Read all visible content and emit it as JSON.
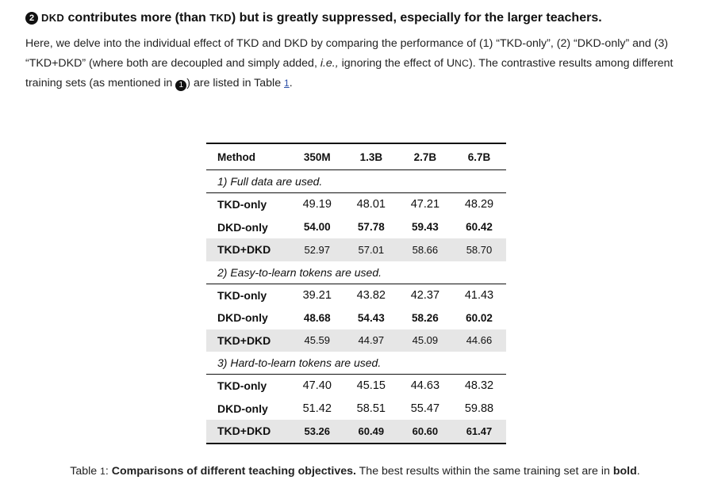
{
  "heading": {
    "badge": "2",
    "text_a": "DKD",
    "text_b": " contributes more (than ",
    "text_c": "TKD",
    "text_d": ") but is greatly suppressed, especially for the larger teachers."
  },
  "paragraph": {
    "p1": "Here, we delve into the individual effect of TKD and DKD by comparing the performance of (1) “TKD-only”, (2) “DKD-only” and (3) “TKD+DKD” (where both are decoupled and simply added, ",
    "ie": "i.e.,",
    "p2": " ignoring the effect of U",
    "unc_sc": "NC",
    "p3": "). The contrastive results among different training sets (as mentioned in ",
    "badge": "1",
    "p4": ") are listed in Table ",
    "table_ref": "1",
    "p5": "."
  },
  "table": {
    "headers": [
      "Method",
      "350M",
      "1.3B",
      "2.7B",
      "6.7B"
    ],
    "sections": [
      {
        "title": "1) Full data are used.",
        "rows": [
          {
            "method": "TKD-only",
            "values": [
              "49.19",
              "48.01",
              "47.21",
              "48.29"
            ]
          },
          {
            "method": "DKD-only",
            "values": [
              "54.00",
              "57.78",
              "59.43",
              "60.42"
            ]
          },
          {
            "method": "TKD+DKD",
            "values": [
              "52.97",
              "57.01",
              "58.66",
              "58.70"
            ]
          }
        ]
      },
      {
        "title": "2) Easy-to-learn tokens are used.",
        "rows": [
          {
            "method": "TKD-only",
            "values": [
              "39.21",
              "43.82",
              "42.37",
              "41.43"
            ]
          },
          {
            "method": "DKD-only",
            "values": [
              "48.68",
              "54.43",
              "58.26",
              "60.02"
            ]
          },
          {
            "method": "TKD+DKD",
            "values": [
              "45.59",
              "44.97",
              "45.09",
              "44.66"
            ]
          }
        ]
      },
      {
        "title": "3) Hard-to-learn tokens are used.",
        "rows": [
          {
            "method": "TKD-only",
            "values": [
              "47.40",
              "45.15",
              "44.63",
              "48.32"
            ]
          },
          {
            "method": "DKD-only",
            "values": [
              "51.42",
              "58.51",
              "55.47",
              "59.88"
            ]
          },
          {
            "method": "TKD+DKD",
            "values": [
              "53.26",
              "60.49",
              "60.60",
              "61.47"
            ]
          }
        ]
      }
    ]
  },
  "caption": {
    "label": "Table ",
    "num": "1",
    "colon": ": ",
    "bold": "Comparisons of different teaching objectives.",
    "rest": " The best results within the same training set are in ",
    "bold_word": "bold",
    "end": "."
  }
}
